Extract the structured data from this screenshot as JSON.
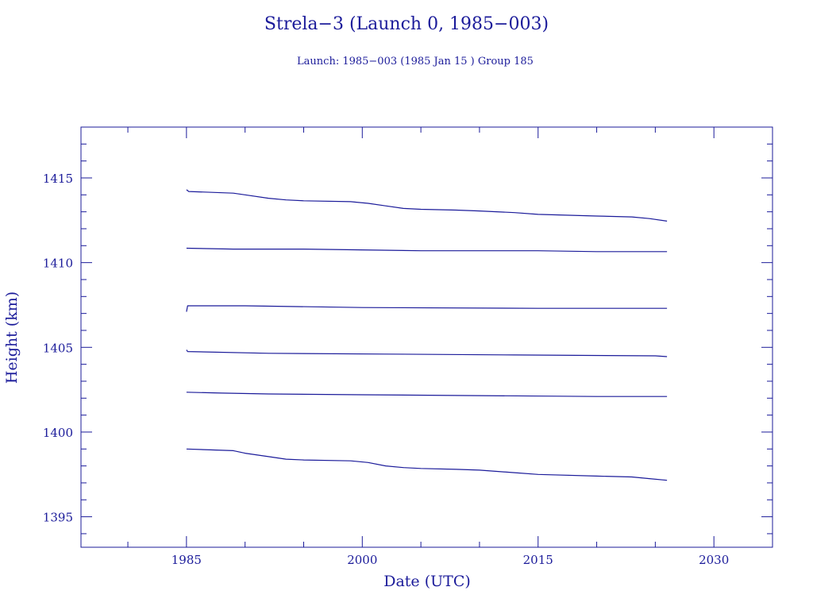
{
  "colors": {
    "axis": "#1b1b9a",
    "series": "#1b1b9a",
    "background": "#ffffff"
  },
  "chart_data": {
    "type": "line",
    "title": "Strela−3 (Launch 0, 1985−003)",
    "subtitle": "Launch: 1985−003  (1985 Jan 15 )  Group 185",
    "xlabel": "Date (UTC)",
    "ylabel": "Height (km)",
    "xlim": [
      1976,
      2035
    ],
    "ylim": [
      1393.2,
      1418.0
    ],
    "xticks": [
      1985,
      2000,
      2015,
      2030
    ],
    "xtick_labels": [
      "1985",
      "2000",
      "2015",
      "2030"
    ],
    "yticks": [
      1395,
      1400,
      1405,
      1410,
      1415
    ],
    "ytick_labels": [
      "1395",
      "1400",
      "1405",
      "1410",
      "1415"
    ],
    "x_minor_step": 5,
    "y_minor_step": 1,
    "grid": false,
    "legend": "none",
    "series": [
      {
        "x": [
          1985.0,
          1985.2,
          1989,
          1990,
          1992,
          1993.5,
          1995,
          1999,
          2000.5,
          2002,
          2003.5,
          2005,
          2008,
          2010,
          2013,
          2015,
          2020,
          2023,
          2024.5,
          2026
        ],
        "values": [
          1414.3,
          1414.2,
          1414.1,
          1414.0,
          1413.8,
          1413.7,
          1413.65,
          1413.6,
          1413.5,
          1413.35,
          1413.2,
          1413.15,
          1413.1,
          1413.05,
          1412.95,
          1412.85,
          1412.75,
          1412.7,
          1412.6,
          1412.45
        ]
      },
      {
        "x": [
          1985.0,
          1989,
          1995,
          2005,
          2015,
          2020,
          2026
        ],
        "values": [
          1410.85,
          1410.8,
          1410.8,
          1410.7,
          1410.7,
          1410.65,
          1410.65
        ]
      },
      {
        "x": [
          1985.0,
          1985.1,
          1990,
          2000,
          2015,
          2026
        ],
        "values": [
          1407.1,
          1407.45,
          1407.45,
          1407.35,
          1407.3,
          1407.3
        ]
      },
      {
        "x": [
          1985.0,
          1985.1,
          1992,
          2002,
          2013,
          2025,
          2026
        ],
        "values": [
          1404.85,
          1404.75,
          1404.65,
          1404.6,
          1404.55,
          1404.5,
          1404.45
        ]
      },
      {
        "x": [
          1985.0,
          1988,
          1992,
          2000,
          2010,
          2020,
          2026
        ],
        "values": [
          1402.35,
          1402.3,
          1402.25,
          1402.2,
          1402.15,
          1402.1,
          1402.1
        ]
      },
      {
        "x": [
          1985.0,
          1989,
          1990,
          1992,
          1993.5,
          1995,
          1999,
          2000.5,
          2002,
          2003.5,
          2005,
          2008,
          2010,
          2013,
          2015,
          2020,
          2023,
          2024.5,
          2026
        ],
        "values": [
          1399.0,
          1398.9,
          1398.75,
          1398.55,
          1398.4,
          1398.35,
          1398.3,
          1398.2,
          1398.0,
          1397.9,
          1397.85,
          1397.8,
          1397.75,
          1397.6,
          1397.5,
          1397.4,
          1397.35,
          1397.25,
          1397.15
        ]
      }
    ]
  }
}
